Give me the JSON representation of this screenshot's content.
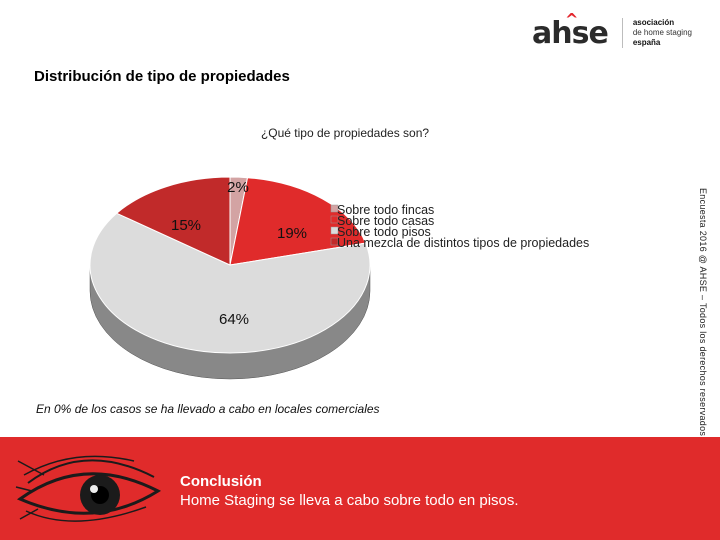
{
  "logo": {
    "mark": "ahse",
    "line1": "asociación",
    "line2": "de home staging",
    "line3": "españa"
  },
  "slide": {
    "title": "Distribución de tipo de propiedades",
    "question": "¿Qué tipo de propiedades son?",
    "credit": "Encuesta 2016 @ AHSE – Todos los derechos reservados",
    "footnote": "En 0% de los casos se ha llevado a cabo en locales comerciales"
  },
  "conclusion": {
    "title": "Conclusión",
    "text": "Home Staging se lleva a cabo sobre todo en pisos."
  },
  "colors": {
    "brand_red": "#e02b2b",
    "fincas": "#d3a3a3",
    "casas": "#e02b2b",
    "pisos": "#dcdcdc",
    "mezcla": "#c12a2a"
  },
  "chart_data": {
    "type": "pie",
    "style": "3d",
    "title": "¿Qué tipo de propiedades son?",
    "legend_position": "right",
    "slices": [
      {
        "label": "Sobre todo fincas",
        "value": 2,
        "display": "2%",
        "color": "#d3a3a3"
      },
      {
        "label": "Sobre todo casas",
        "value": 19,
        "display": "19%",
        "color": "#e02b2b"
      },
      {
        "label": "Sobre todo pisos",
        "value": 64,
        "display": "64%",
        "color": "#dcdcdc"
      },
      {
        "label": "Una mezcla de distintos tipos de propiedades",
        "value": 15,
        "display": "15%",
        "color": "#c12a2a"
      }
    ]
  }
}
